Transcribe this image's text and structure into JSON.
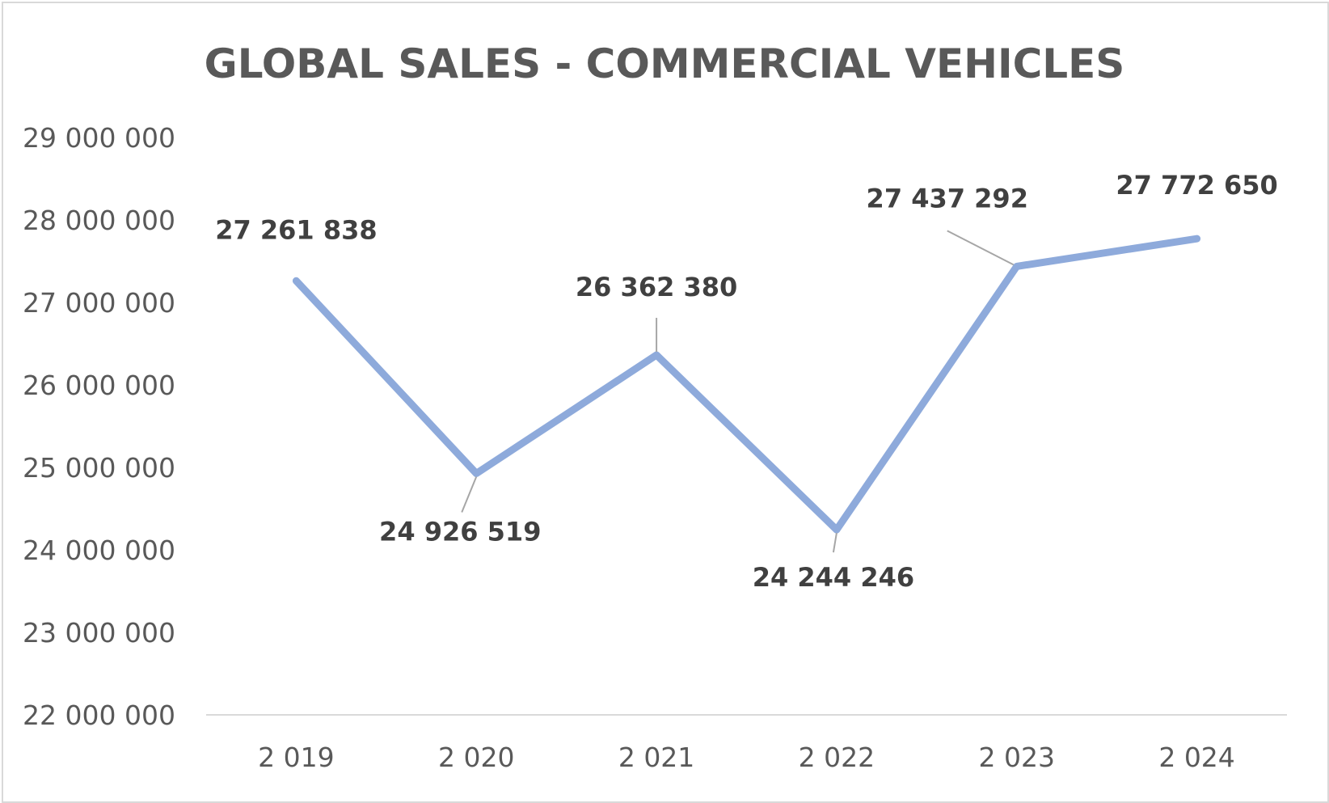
{
  "chart_data": {
    "type": "line",
    "title": "GLOBAL SALES - COMMERCIAL VEHICLES",
    "xlabel": "",
    "ylabel": "",
    "categories": [
      "2 019",
      "2 020",
      "2 021",
      "2 022",
      "2 023",
      "2 024"
    ],
    "series": [
      {
        "values": [
          27261838,
          24926519,
          26362380,
          24244246,
          27437292,
          27772650
        ],
        "labels": [
          "27 261 838",
          "24 926 519",
          "26 362 380",
          "24 244 246",
          "27 437 292",
          "27 772 650"
        ],
        "label_positions": [
          "above",
          "below",
          "above",
          "below",
          "above",
          "above"
        ],
        "color": "#8eaadb"
      }
    ],
    "ylim": [
      22000000,
      29000000
    ],
    "yticks": [
      22000000,
      23000000,
      24000000,
      25000000,
      26000000,
      27000000,
      28000000,
      29000000
    ],
    "ytick_labels": [
      "22 000 000",
      "23 000 000",
      "24 000 000",
      "25 000 000",
      "26 000 000",
      "27 000 000",
      "28 000 000",
      "29 000 000"
    ],
    "grid": false,
    "legend": "none",
    "colors": {
      "line": "#8eaadb",
      "axis": "#d9d9d9",
      "leader": "#a6a6a6",
      "text": "#595959",
      "label": "#404040"
    }
  }
}
